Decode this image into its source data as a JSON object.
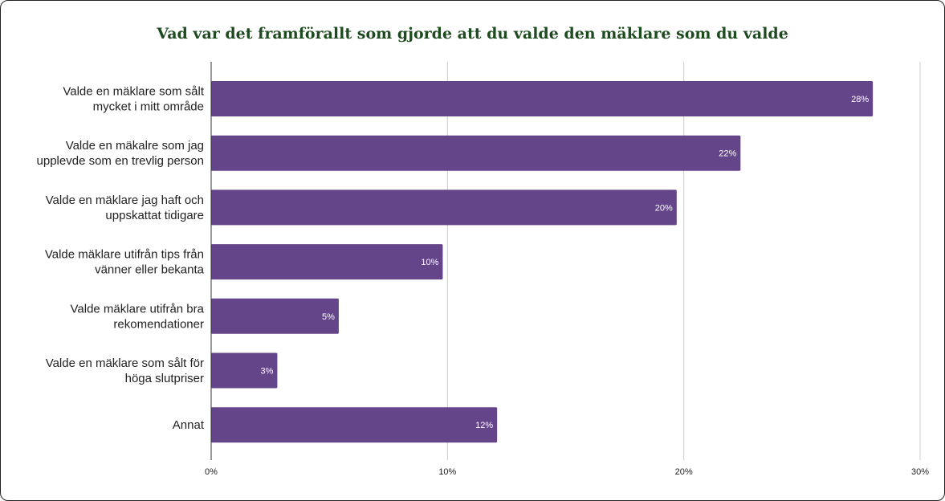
{
  "chart_data": {
    "type": "bar",
    "orientation": "horizontal",
    "title": "Vad var det framförallt som gjorde att du valde den mäklare som du valde",
    "categories": [
      [
        "Valde en mäklare som sålt",
        "mycket i mitt område"
      ],
      [
        "Valde en mäkalre som jag",
        "upplevde som en trevlig person"
      ],
      [
        "Valde en mäklare jag haft och",
        "uppskattat tidigare"
      ],
      [
        "Valde mäklare utifrån tips från",
        "vänner eller bekanta"
      ],
      [
        "Valde mäklare utifrån bra",
        "rekomendationer"
      ],
      [
        "Valde en mäklare som sålt för",
        "höga slutpriser"
      ],
      [
        "Annat"
      ]
    ],
    "values": [
      28,
      22.4,
      19.7,
      9.8,
      5.4,
      2.8,
      12.1
    ],
    "data_labels": [
      "28%",
      "22%",
      "20%",
      "10%",
      "5%",
      "3%",
      "12%"
    ],
    "xlim": [
      0,
      30
    ],
    "xticks": [
      0,
      10,
      20,
      30
    ],
    "xtick_labels": [
      "0%",
      "10%",
      "20%",
      "30%"
    ],
    "xlabel": "",
    "ylabel": "",
    "grid": true,
    "legend": "none",
    "bar_color": "#65458a",
    "title_color": "#1e4a20"
  }
}
